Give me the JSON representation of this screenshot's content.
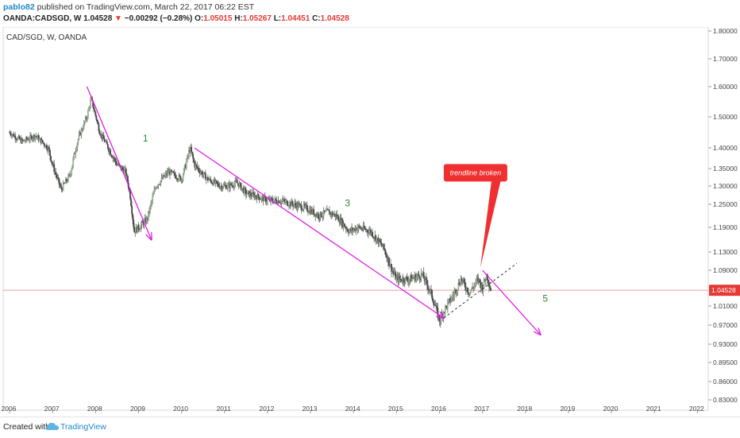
{
  "header": {
    "username": "pablo82",
    "published_text": " published on TradingView.com, March 22, 2017 06:22 EST",
    "symbol": "OANDA:CADSGD, W",
    "last": "1.04528",
    "change": "−0.00292 (−0.28%)",
    "open_label": "O:",
    "open": "1.05015",
    "high_label": "H:",
    "high": "1.05267",
    "low_label": "L:",
    "low": "1.04451",
    "close_label": "C:",
    "close": "1.04528"
  },
  "footer": {
    "created_with": "Created with",
    "brand": "TradingView"
  },
  "chart_data": {
    "type": "line",
    "title": "CAD/SGD, W, OANDA",
    "x_ticks": [
      "2006",
      "2007",
      "2008",
      "2009",
      "2010",
      "2011",
      "2012",
      "2013",
      "2014",
      "2015",
      "2016",
      "2017",
      "2018",
      "2019",
      "2020",
      "2021",
      "2022"
    ],
    "y_ticks": [
      "1.80000",
      "1.70000",
      "1.60000",
      "1.50000",
      "1.40000",
      "1.35000",
      "1.30000",
      "1.25000",
      "1.19000",
      "1.13000",
      "1.09000",
      "1.01000",
      "0.97000",
      "0.93000",
      "0.89500",
      "0.86000",
      "0.83000"
    ],
    "x_range": [
      2006.0,
      2022.4
    ],
    "last_price": "1.04528",
    "series": [
      {
        "x": [
          2006.0,
          2006.3,
          2006.6,
          2006.9,
          2007.0,
          2007.2,
          2007.4,
          2007.6,
          2007.8,
          2007.9,
          2008.1,
          2008.3,
          2008.5,
          2008.7,
          2008.8,
          2008.9,
          2009.0,
          2009.2,
          2009.4,
          2009.7,
          2010.0,
          2010.2,
          2010.3,
          2010.6,
          2010.9,
          2011.1,
          2011.3,
          2011.5,
          2011.8,
          2012.0,
          2012.3,
          2012.6,
          2012.9,
          2013.2,
          2013.4,
          2013.6,
          2013.9,
          2014.1,
          2014.4,
          2014.7,
          2014.9,
          2015.0,
          2015.3,
          2015.6,
          2015.8,
          2016.0,
          2016.1,
          2016.3,
          2016.5,
          2016.7,
          2016.9,
          2017.0,
          2017.1,
          2017.2
        ],
        "y": [
          1.45,
          1.42,
          1.44,
          1.4,
          1.36,
          1.29,
          1.33,
          1.43,
          1.5,
          1.56,
          1.45,
          1.4,
          1.36,
          1.34,
          1.28,
          1.18,
          1.19,
          1.21,
          1.3,
          1.34,
          1.32,
          1.4,
          1.36,
          1.32,
          1.3,
          1.3,
          1.31,
          1.28,
          1.27,
          1.26,
          1.26,
          1.25,
          1.24,
          1.22,
          1.23,
          1.22,
          1.18,
          1.19,
          1.18,
          1.14,
          1.09,
          1.07,
          1.07,
          1.08,
          1.04,
          0.98,
          1.0,
          1.03,
          1.07,
          1.04,
          1.07,
          1.05,
          1.08,
          1.045
        ]
      }
    ],
    "annotations": [
      {
        "text": "1",
        "x": 2009.1,
        "y": 1.42
      },
      {
        "text": "3",
        "x": 2013.8,
        "y": 1.245
      },
      {
        "text": "5",
        "x": 2018.4,
        "y": 1.02
      },
      {
        "text": "trendline broken",
        "x": 2016.1,
        "y": 1.34
      }
    ],
    "arrows": [
      {
        "from": [
          2007.8,
          1.6
        ],
        "to": [
          2009.3,
          1.16
        ]
      },
      {
        "from": [
          2010.3,
          1.4
        ],
        "to": [
          2016.1,
          0.985
        ]
      },
      {
        "from": [
          2017.0,
          1.09
        ],
        "to": [
          2018.35,
          0.95
        ]
      }
    ],
    "trendline": {
      "from": [
        2016.1,
        0.985
      ],
      "to": [
        2017.8,
        1.105
      ]
    },
    "price_line": 1.04528,
    "colors": {
      "candle": "#555555",
      "arrow": "#e020e0",
      "label_bg": "#f03030",
      "price_line": "#e6a0a0",
      "annotation_text": "#2a8a2a",
      "last_price_bg": "#e53935"
    }
  }
}
